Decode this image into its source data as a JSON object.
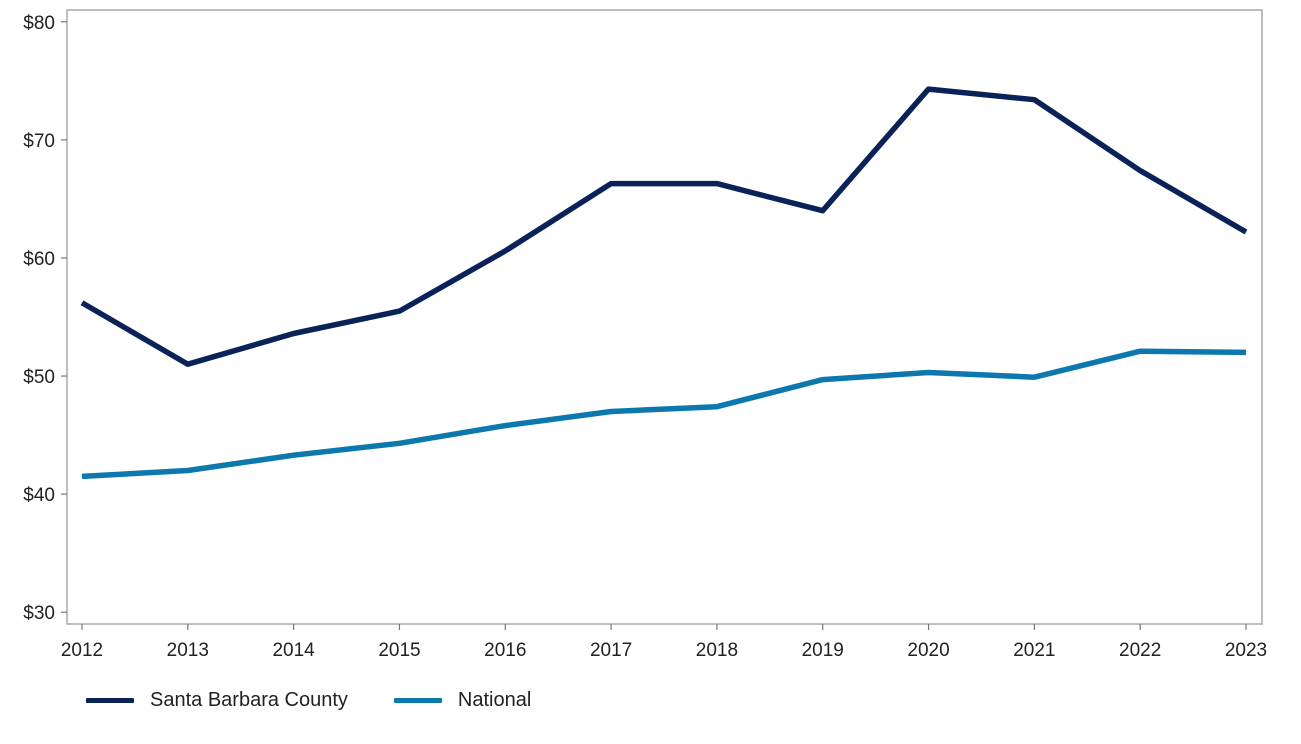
{
  "chart_data": {
    "type": "line",
    "x": [
      "2012",
      "2013",
      "2014",
      "2015",
      "2016",
      "2017",
      "2018",
      "2019",
      "2020",
      "2021",
      "2022",
      "2023"
    ],
    "ylim": [
      29,
      81
    ],
    "y_ticks": [
      30,
      40,
      50,
      60,
      70,
      80
    ],
    "y_tick_labels": [
      "$30",
      "$40",
      "$50",
      "$60",
      "$70",
      "$80"
    ],
    "grid": false,
    "legend_placement": "bottom-left",
    "series": [
      {
        "name": "Santa Barbara County",
        "color": "#0b2259",
        "values": [
          56.2,
          51.0,
          53.6,
          55.5,
          60.6,
          66.3,
          66.3,
          64.0,
          74.3,
          73.4,
          67.4,
          62.2
        ]
      },
      {
        "name": "National",
        "color": "#0c78ad",
        "values": [
          41.5,
          42.0,
          43.3,
          44.3,
          45.8,
          47.0,
          47.4,
          49.7,
          50.3,
          49.9,
          52.1,
          52.0
        ]
      }
    ]
  }
}
